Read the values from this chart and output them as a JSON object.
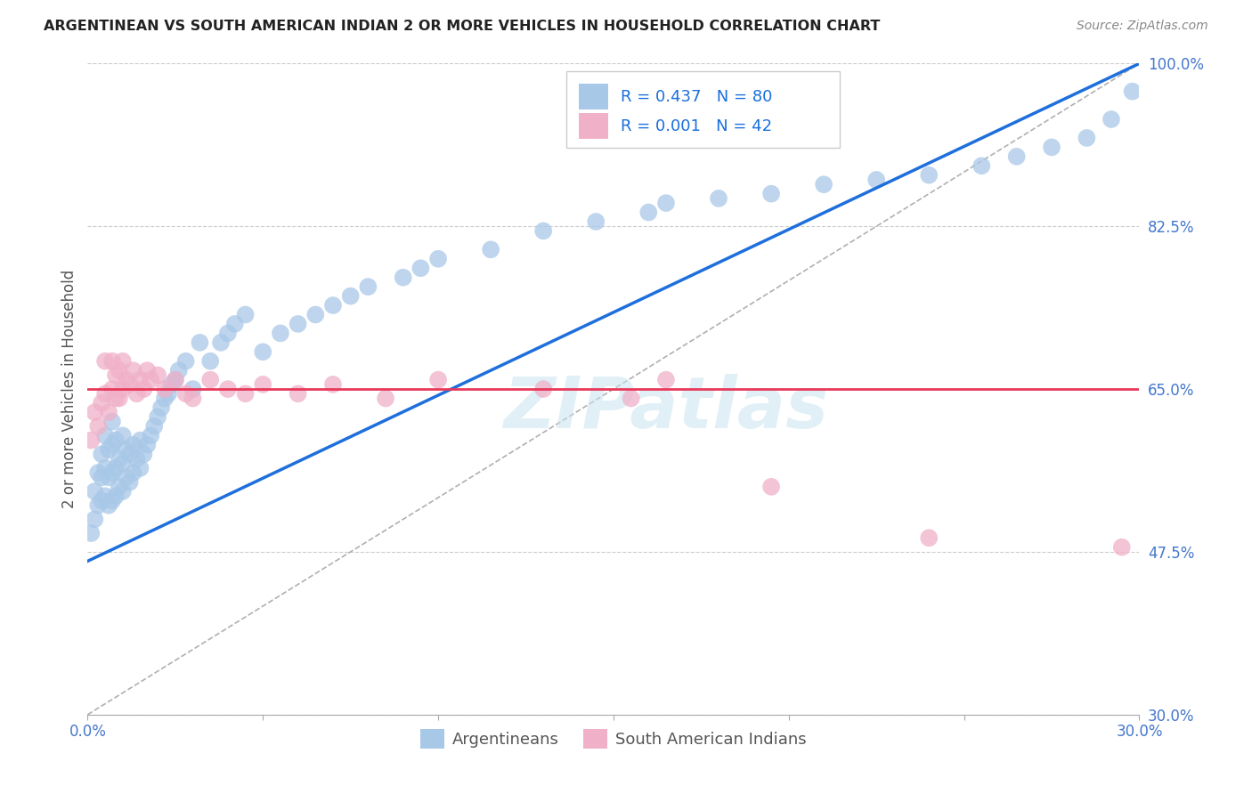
{
  "title": "ARGENTINEAN VS SOUTH AMERICAN INDIAN 2 OR MORE VEHICLES IN HOUSEHOLD CORRELATION CHART",
  "source": "Source: ZipAtlas.com",
  "ylabel": "2 or more Vehicles in Household",
  "xmin": 0.0,
  "xmax": 0.3,
  "ymin": 0.3,
  "ymax": 1.0,
  "xticks": [
    0.0,
    0.05,
    0.1,
    0.15,
    0.2,
    0.25,
    0.3
  ],
  "xticklabels": [
    "0.0%",
    "",
    "",
    "",
    "",
    "",
    "30.0%"
  ],
  "yticks": [
    1.0,
    0.825,
    0.65,
    0.475,
    0.3
  ],
  "yticklabels": [
    "100.0%",
    "82.5%",
    "65.0%",
    "47.5%",
    "30.0%"
  ],
  "blue_R": "0.437",
  "blue_N": "80",
  "pink_R": "0.001",
  "pink_N": "42",
  "blue_color": "#a8c8e8",
  "pink_color": "#f0b0c8",
  "blue_line_color": "#1e6fdc",
  "pink_line_color": "#e8385a",
  "grey_line_color": "#b0b0b0",
  "watermark": "ZIPatlas",
  "blue_line_x0": 0.0,
  "blue_line_y0": 0.465,
  "blue_line_x1": 0.3,
  "blue_line_y1": 1.0,
  "pink_line_y": 0.65,
  "blue_scatter_x": [
    0.001,
    0.002,
    0.002,
    0.003,
    0.003,
    0.004,
    0.004,
    0.004,
    0.005,
    0.005,
    0.005,
    0.006,
    0.006,
    0.006,
    0.007,
    0.007,
    0.007,
    0.007,
    0.008,
    0.008,
    0.008,
    0.009,
    0.009,
    0.01,
    0.01,
    0.01,
    0.011,
    0.011,
    0.012,
    0.012,
    0.013,
    0.013,
    0.014,
    0.015,
    0.015,
    0.016,
    0.017,
    0.018,
    0.019,
    0.02,
    0.021,
    0.022,
    0.023,
    0.024,
    0.025,
    0.026,
    0.028,
    0.03,
    0.032,
    0.035,
    0.038,
    0.04,
    0.042,
    0.045,
    0.05,
    0.055,
    0.06,
    0.065,
    0.07,
    0.075,
    0.08,
    0.09,
    0.095,
    0.1,
    0.115,
    0.13,
    0.145,
    0.16,
    0.165,
    0.18,
    0.195,
    0.21,
    0.225,
    0.24,
    0.255,
    0.265,
    0.275,
    0.285,
    0.292,
    0.298
  ],
  "blue_scatter_y": [
    0.495,
    0.51,
    0.54,
    0.525,
    0.56,
    0.53,
    0.555,
    0.58,
    0.535,
    0.565,
    0.6,
    0.525,
    0.555,
    0.585,
    0.53,
    0.56,
    0.59,
    0.615,
    0.535,
    0.565,
    0.595,
    0.545,
    0.575,
    0.54,
    0.57,
    0.6,
    0.555,
    0.585,
    0.55,
    0.58,
    0.56,
    0.59,
    0.575,
    0.565,
    0.595,
    0.58,
    0.59,
    0.6,
    0.61,
    0.62,
    0.63,
    0.64,
    0.645,
    0.655,
    0.66,
    0.67,
    0.68,
    0.65,
    0.7,
    0.68,
    0.7,
    0.71,
    0.72,
    0.73,
    0.69,
    0.71,
    0.72,
    0.73,
    0.74,
    0.75,
    0.76,
    0.77,
    0.78,
    0.79,
    0.8,
    0.82,
    0.83,
    0.84,
    0.85,
    0.855,
    0.86,
    0.87,
    0.875,
    0.88,
    0.89,
    0.9,
    0.91,
    0.92,
    0.94,
    0.97
  ],
  "pink_scatter_x": [
    0.001,
    0.002,
    0.003,
    0.004,
    0.005,
    0.005,
    0.006,
    0.007,
    0.007,
    0.008,
    0.008,
    0.009,
    0.009,
    0.01,
    0.01,
    0.011,
    0.012,
    0.013,
    0.014,
    0.015,
    0.016,
    0.017,
    0.018,
    0.02,
    0.022,
    0.025,
    0.028,
    0.03,
    0.035,
    0.04,
    0.045,
    0.05,
    0.06,
    0.07,
    0.085,
    0.1,
    0.13,
    0.155,
    0.165,
    0.195,
    0.24,
    0.295
  ],
  "pink_scatter_y": [
    0.595,
    0.625,
    0.61,
    0.635,
    0.645,
    0.68,
    0.625,
    0.65,
    0.68,
    0.64,
    0.665,
    0.64,
    0.67,
    0.65,
    0.68,
    0.66,
    0.655,
    0.67,
    0.645,
    0.66,
    0.65,
    0.67,
    0.66,
    0.665,
    0.65,
    0.66,
    0.645,
    0.64,
    0.66,
    0.65,
    0.645,
    0.655,
    0.645,
    0.655,
    0.64,
    0.66,
    0.65,
    0.64,
    0.66,
    0.545,
    0.49,
    0.48
  ]
}
